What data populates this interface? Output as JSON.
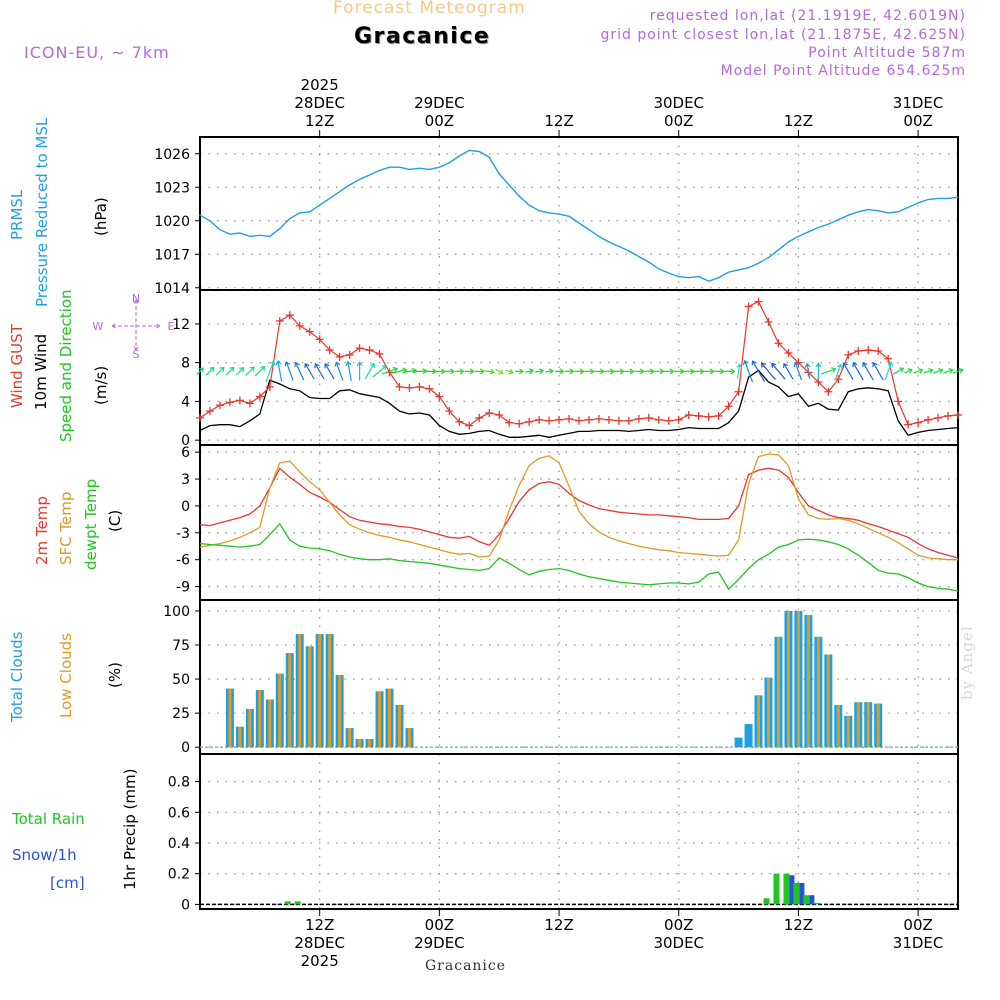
{
  "header": {
    "title": "Forecast Meteogram",
    "location": "Gracanice",
    "model": "ICON-EU, ~ 7km",
    "requested": "requested lon,lat (21.1919E, 42.6019N)",
    "gridpoint": "grid point closest lon,lat (21.1875E, 42.625N)",
    "point_alt": "Point Altitude 587m",
    "model_alt": "Model Point Altitude 654.625m",
    "credit": "by Angel",
    "footer_location": "Gracanice"
  },
  "colors": {
    "pressure": "#1fa0e0",
    "gust": "#e8382f",
    "wind": "#000000",
    "temp": "#e8382f",
    "sfc": "#e09a25",
    "dewpt": "#22c422",
    "total_cloud": "#1fa0e0",
    "low_cloud": "#e09a25",
    "rain": "#22c422",
    "snow": "#2850e0",
    "label_purple": "#b56ad6",
    "title_orange": "#f5c98a"
  },
  "time_axis": {
    "top_labels": [
      {
        "hour": 12,
        "lines": [
          "2025",
          "28DEC",
          "12Z"
        ]
      },
      {
        "hour": 24,
        "lines": [
          "29DEC",
          "00Z"
        ]
      },
      {
        "hour": 36,
        "lines": [
          "12Z"
        ]
      },
      {
        "hour": 48,
        "lines": [
          "30DEC",
          "00Z"
        ]
      },
      {
        "hour": 60,
        "lines": [
          "12Z"
        ]
      },
      {
        "hour": 72,
        "lines": [
          "31DEC",
          "00Z"
        ]
      }
    ],
    "bottom_labels": [
      {
        "hour": 12,
        "lines": [
          "12Z",
          "28DEC",
          "2025"
        ]
      },
      {
        "hour": 24,
        "lines": [
          "00Z",
          "29DEC"
        ]
      },
      {
        "hour": 36,
        "lines": [
          "12Z"
        ]
      },
      {
        "hour": 48,
        "lines": [
          "00Z",
          "30DEC"
        ]
      },
      {
        "hour": 60,
        "lines": [
          "12Z"
        ]
      },
      {
        "hour": 72,
        "lines": [
          "00Z",
          "31DEC"
        ]
      }
    ]
  },
  "panel_labels": {
    "pressure": {
      "l1": "PRMSL",
      "l2": "Pressure Reduced to MSL",
      "unit": "(hPa)"
    },
    "wind": {
      "gust": "Wind GUST",
      "wind": "10m Wind",
      "dir": "Speed and Direction",
      "unit": "(m/s)",
      "rose_w": "W",
      "rose_e": "E",
      "rose_n": "N",
      "rose_s": "S"
    },
    "temp": {
      "t2m": "2m Temp",
      "sfc": "SFC Temp",
      "dew": "dewpt Temp",
      "unit": "(C)"
    },
    "cloud": {
      "total": "Total Clouds",
      "low": "Low Clouds",
      "unit": "(%)"
    },
    "precip": {
      "rain": "Total  Rain",
      "snow": "Snow/1h",
      "snow_unit": "[cm]",
      "title": "1hr Precip (mm)"
    }
  },
  "chart_data": [
    {
      "type": "line",
      "title": "PRMSL Pressure Reduced to MSL",
      "ylabel": "hPa",
      "ylim": [
        1013.8,
        1027.5
      ],
      "yticks": [
        1014,
        1017,
        1020,
        1023,
        1026
      ],
      "x_hours": [
        0,
        1,
        2,
        3,
        4,
        5,
        6,
        7,
        8,
        9,
        10,
        11,
        12,
        13,
        14,
        15,
        16,
        17,
        18,
        19,
        20,
        21,
        22,
        23,
        24,
        25,
        26,
        27,
        28,
        29,
        30,
        31,
        32,
        33,
        34,
        35,
        36,
        37,
        38,
        39,
        40,
        41,
        42,
        43,
        44,
        45,
        46,
        47,
        48,
        49,
        50,
        51,
        52,
        53,
        54,
        55,
        56,
        57,
        58,
        59,
        60,
        61,
        62,
        63,
        64,
        65,
        66,
        67,
        68,
        69,
        70,
        71,
        72,
        73,
        74,
        75,
        76
      ],
      "values": [
        1020.5,
        1020.0,
        1019.2,
        1018.8,
        1018.9,
        1018.6,
        1018.7,
        1018.6,
        1019.3,
        1020.2,
        1020.7,
        1020.8,
        1021.4,
        1022.0,
        1022.6,
        1023.2,
        1023.7,
        1024.1,
        1024.5,
        1024.8,
        1024.8,
        1024.6,
        1024.7,
        1024.6,
        1024.8,
        1025.2,
        1025.8,
        1026.3,
        1026.2,
        1025.7,
        1024.2,
        1023.2,
        1022.2,
        1021.4,
        1020.9,
        1020.7,
        1020.6,
        1020.4,
        1019.8,
        1019.2,
        1018.6,
        1018.1,
        1017.7,
        1017.3,
        1016.8,
        1016.3,
        1015.7,
        1015.3,
        1015.0,
        1014.9,
        1015.0,
        1014.6,
        1014.9,
        1015.4,
        1015.6,
        1015.8,
        1016.2,
        1016.7,
        1017.4,
        1018.1,
        1018.6,
        1019.0,
        1019.4,
        1019.7,
        1020.1,
        1020.5,
        1020.8,
        1021.0,
        1020.9,
        1020.7,
        1020.8,
        1021.2,
        1021.6,
        1021.9,
        1022.0,
        1022.0,
        1022.1
      ]
    },
    {
      "type": "line",
      "title": "Wind GUST / 10m Wind Speed and Direction",
      "ylabel": "m/s",
      "ylim": [
        -0.5,
        15.5
      ],
      "yticks": [
        0,
        4,
        8,
        12
      ],
      "x_hours": [
        0,
        1,
        2,
        3,
        4,
        5,
        6,
        7,
        8,
        9,
        10,
        11,
        12,
        13,
        14,
        15,
        16,
        17,
        18,
        19,
        20,
        21,
        22,
        23,
        24,
        25,
        26,
        27,
        28,
        29,
        30,
        31,
        32,
        33,
        34,
        35,
        36,
        37,
        38,
        39,
        40,
        41,
        42,
        43,
        44,
        45,
        46,
        47,
        48,
        49,
        50,
        51,
        52,
        53,
        54,
        55,
        56,
        57,
        58,
        59,
        60,
        61,
        62,
        63,
        64,
        65,
        66,
        67,
        68,
        69,
        70,
        71,
        72,
        73,
        74,
        75,
        76
      ],
      "series": [
        {
          "name": "Wind GUST",
          "values": [
            2.3,
            3.0,
            3.6,
            3.9,
            4.1,
            3.8,
            4.5,
            5.5,
            12.3,
            12.9,
            11.8,
            11.2,
            10.4,
            9.3,
            8.6,
            8.8,
            9.5,
            9.3,
            8.9,
            7.0,
            5.5,
            5.4,
            5.5,
            5.3,
            4.5,
            3.0,
            1.9,
            1.5,
            2.3,
            2.8,
            2.6,
            1.8,
            1.7,
            1.9,
            2.1,
            2.0,
            2.1,
            2.2,
            2.0,
            2.1,
            2.2,
            2.1,
            2.0,
            2.0,
            2.2,
            2.3,
            2.1,
            2.0,
            2.1,
            2.6,
            2.5,
            2.4,
            2.5,
            3.5,
            5.0,
            13.8,
            14.3,
            12.2,
            10.0,
            9.0,
            8.0,
            7.0,
            6.0,
            5.0,
            6.3,
            8.8,
            9.2,
            9.3,
            9.2,
            8.4,
            4.0,
            1.6,
            1.8,
            2.1,
            2.3,
            2.5,
            2.6
          ]
        },
        {
          "name": "10m Wind",
          "values": [
            1.0,
            1.5,
            1.6,
            1.6,
            1.4,
            2.0,
            2.7,
            6.2,
            5.8,
            5.3,
            5.1,
            4.4,
            4.3,
            4.3,
            5.1,
            5.2,
            4.8,
            4.6,
            4.4,
            3.8,
            3.0,
            2.7,
            2.8,
            2.6,
            1.5,
            0.9,
            0.6,
            0.7,
            0.9,
            1.0,
            0.6,
            0.3,
            0.3,
            0.4,
            0.5,
            0.3,
            0.5,
            0.7,
            0.9,
            0.9,
            1.0,
            1.0,
            1.0,
            0.9,
            1.0,
            1.1,
            1.0,
            1.0,
            1.1,
            1.3,
            1.2,
            1.2,
            1.2,
            1.8,
            3.0,
            6.5,
            7.2,
            6.0,
            5.5,
            4.5,
            4.8,
            3.5,
            3.8,
            3.2,
            3.1,
            5.0,
            5.3,
            5.4,
            5.3,
            5.1,
            2.0,
            0.5,
            0.8,
            1.0,
            1.1,
            1.2,
            1.3
          ]
        }
      ]
    },
    {
      "type": "line",
      "title": "2m Temp / SFC Temp / dewpt Temp",
      "ylabel": "C",
      "ylim": [
        -10.5,
        6.8
      ],
      "yticks": [
        -9,
        -6,
        -3,
        0,
        3,
        6
      ],
      "x_hours": [
        0,
        1,
        2,
        3,
        4,
        5,
        6,
        7,
        8,
        9,
        10,
        11,
        12,
        13,
        14,
        15,
        16,
        17,
        18,
        19,
        20,
        21,
        22,
        23,
        24,
        25,
        26,
        27,
        28,
        29,
        30,
        31,
        32,
        33,
        34,
        35,
        36,
        37,
        38,
        39,
        40,
        41,
        42,
        43,
        44,
        45,
        46,
        47,
        48,
        49,
        50,
        51,
        52,
        53,
        54,
        55,
        56,
        57,
        58,
        59,
        60,
        61,
        62,
        63,
        64,
        65,
        66,
        67,
        68,
        69,
        70,
        71,
        72,
        73,
        74,
        75,
        76
      ],
      "series": [
        {
          "name": "2m Temp",
          "values": [
            -2.1,
            -2.2,
            -1.9,
            -1.6,
            -1.3,
            -0.9,
            0.0,
            2.0,
            4.2,
            3.2,
            2.4,
            1.5,
            1.0,
            0.4,
            -0.4,
            -1.2,
            -1.6,
            -1.8,
            -2.0,
            -2.1,
            -2.3,
            -2.4,
            -2.6,
            -2.9,
            -3.2,
            -3.5,
            -3.6,
            -3.4,
            -4.0,
            -4.4,
            -3.2,
            -1.4,
            0.5,
            1.8,
            2.5,
            2.7,
            2.4,
            1.4,
            0.6,
            0.1,
            -0.3,
            -0.5,
            -0.7,
            -0.8,
            -0.9,
            -1.0,
            -1.0,
            -1.1,
            -1.2,
            -1.3,
            -1.5,
            -1.5,
            -1.5,
            -1.4,
            0.0,
            3.5,
            4.0,
            4.2,
            4.0,
            3.2,
            1.5,
            0.0,
            -0.5,
            -1.0,
            -1.3,
            -1.4,
            -1.6,
            -2.0,
            -2.3,
            -2.7,
            -3.1,
            -3.5,
            -4.2,
            -4.8,
            -5.2,
            -5.5,
            -5.8
          ]
        },
        {
          "name": "SFC Temp",
          "values": [
            -4.6,
            -4.4,
            -4.2,
            -3.9,
            -3.5,
            -3.0,
            -2.4,
            2.0,
            4.8,
            5.0,
            3.8,
            2.7,
            1.8,
            0.4,
            -1.0,
            -2.1,
            -2.6,
            -3.0,
            -3.3,
            -3.5,
            -3.8,
            -4.0,
            -4.3,
            -4.6,
            -4.9,
            -5.2,
            -5.4,
            -5.3,
            -5.7,
            -5.6,
            -3.8,
            -0.5,
            2.3,
            4.5,
            5.3,
            5.6,
            4.8,
            2.2,
            -0.6,
            -2.0,
            -2.9,
            -3.5,
            -3.9,
            -4.2,
            -4.5,
            -4.7,
            -4.9,
            -5.0,
            -5.2,
            -5.3,
            -5.4,
            -5.5,
            -5.6,
            -5.5,
            -3.8,
            2.5,
            5.5,
            5.8,
            5.7,
            4.5,
            0.8,
            -1.0,
            -1.4,
            -1.5,
            -1.4,
            -1.6,
            -2.0,
            -2.5,
            -3.0,
            -3.5,
            -4.1,
            -4.8,
            -5.5,
            -5.8,
            -5.9,
            -6.0,
            -6.0
          ]
        },
        {
          "name": "dewpt Temp",
          "values": [
            -4.2,
            -4.3,
            -4.4,
            -4.5,
            -4.6,
            -4.5,
            -4.3,
            -3.2,
            -2.0,
            -3.8,
            -4.5,
            -4.7,
            -4.8,
            -5.0,
            -5.4,
            -5.7,
            -5.9,
            -6.0,
            -6.0,
            -5.9,
            -6.1,
            -6.2,
            -6.3,
            -6.4,
            -6.6,
            -6.8,
            -7.0,
            -7.1,
            -7.2,
            -7.0,
            -5.8,
            -6.4,
            -7.1,
            -7.7,
            -7.3,
            -7.1,
            -7.0,
            -7.2,
            -7.6,
            -7.9,
            -8.1,
            -8.3,
            -8.5,
            -8.6,
            -8.7,
            -8.8,
            -8.7,
            -8.6,
            -8.6,
            -8.7,
            -8.5,
            -7.6,
            -7.4,
            -9.3,
            -8.2,
            -7.0,
            -6.0,
            -5.4,
            -4.6,
            -4.3,
            -3.8,
            -3.7,
            -3.8,
            -4.0,
            -4.3,
            -4.8,
            -5.5,
            -6.3,
            -7.2,
            -7.5,
            -7.6,
            -8.0,
            -8.6,
            -9.0,
            -9.2,
            -9.3,
            -9.5
          ]
        }
      ]
    },
    {
      "type": "bar",
      "title": "Total Clouds / Low Clouds",
      "ylabel": "%",
      "ylim": [
        -5,
        108
      ],
      "yticks": [
        0,
        25,
        50,
        75,
        100
      ],
      "x_hours": [
        3,
        4,
        5,
        6,
        7,
        8,
        9,
        10,
        11,
        12,
        13,
        14,
        15,
        16,
        17,
        18,
        19,
        20,
        21,
        22,
        23,
        54,
        55,
        56,
        57,
        58,
        59,
        60,
        61,
        62,
        63,
        64,
        65,
        66,
        67,
        68,
        69,
        70,
        71,
        72,
        73,
        74,
        75,
        76
      ],
      "series": [
        {
          "name": "Total Clouds",
          "values": [
            43,
            15,
            28,
            42,
            35,
            54,
            69,
            83,
            74,
            83,
            83,
            53,
            14,
            6,
            6,
            41,
            43,
            31,
            14,
            0,
            0,
            7,
            17,
            38,
            51,
            81,
            100,
            100,
            97,
            81,
            68,
            31,
            23,
            33,
            33,
            32,
            0,
            0,
            0,
            0,
            0,
            0,
            0,
            0
          ]
        },
        {
          "name": "Low Clouds",
          "values": [
            43,
            15,
            28,
            42,
            35,
            54,
            69,
            83,
            74,
            83,
            83,
            53,
            14,
            6,
            6,
            41,
            43,
            31,
            14,
            0,
            0,
            0,
            0,
            38,
            51,
            81,
            100,
            100,
            97,
            81,
            68,
            31,
            23,
            33,
            33,
            32,
            0,
            0,
            0,
            0,
            0,
            0,
            0,
            0
          ]
        }
      ]
    },
    {
      "type": "bar",
      "title": "1hr Precip (mm) - Total Rain / Snow/1h [cm]",
      "ylabel": "mm",
      "ylim": [
        -0.03,
        0.98
      ],
      "yticks": [
        0,
        0.2,
        0.4,
        0.6,
        0.8
      ],
      "x_hours": [
        9,
        10,
        57,
        58,
        59,
        60,
        61,
        62
      ],
      "series": [
        {
          "name": "Total Rain",
          "values": [
            0.02,
            0.02,
            0.04,
            0.2,
            0.2,
            0.14,
            0.06,
            0.01
          ]
        },
        {
          "name": "Snow/1h",
          "values": [
            0,
            0,
            0,
            0,
            0.19,
            0.14,
            0.06,
            0
          ]
        }
      ]
    }
  ],
  "wind_dir": [
    225,
    225,
    225,
    225,
    225,
    225,
    225,
    200,
    170,
    160,
    155,
    150,
    150,
    150,
    160,
    170,
    180,
    210,
    230,
    250,
    255,
    260,
    265,
    270,
    270,
    270,
    270,
    270,
    270,
    280,
    300,
    290,
    270,
    260,
    260,
    260,
    270,
    270,
    270,
    270,
    270,
    270,
    270,
    270,
    270,
    270,
    270,
    270,
    270,
    270,
    270,
    270,
    270,
    270,
    190,
    160,
    150,
    140,
    140,
    150,
    160,
    170,
    180,
    250,
    200,
    150,
    150,
    150,
    150,
    200,
    240,
    245,
    250,
    250,
    250,
    250,
    250
  ]
}
